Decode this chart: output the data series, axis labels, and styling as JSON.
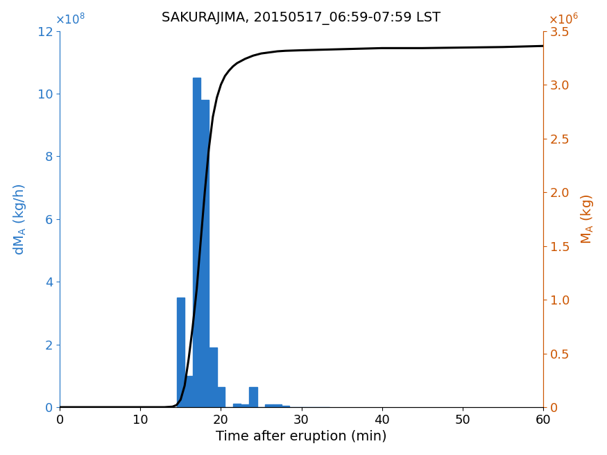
{
  "title": "SAKURAJIMA, 20150517_06:59-07:59 LST",
  "xlabel": "Time after eruption (min)",
  "bar_color": "#2878c8",
  "line_color": "#000000",
  "left_axis_color": "#2878c8",
  "right_axis_color": "#cc5500",
  "xlim": [
    0,
    60
  ],
  "ylim_left": [
    0,
    1200000000.0
  ],
  "ylim_right": [
    0,
    3500000.0
  ],
  "bar_centers": [
    15,
    16,
    17,
    18,
    19,
    20,
    21,
    22,
    23,
    24,
    25,
    26,
    27,
    28,
    29,
    30,
    31,
    32,
    33
  ],
  "bar_heights": [
    350000000.0,
    100000000.0,
    1050000000.0,
    980000000.0,
    190000000.0,
    65000000.0,
    0.0,
    12000000.0,
    10000000.0,
    65000000.0,
    0.0,
    10000000.0,
    10000000.0,
    5000000.0,
    0.0,
    0.0,
    0.0,
    0.0,
    0.0
  ],
  "cum_x": [
    0,
    1,
    2,
    3,
    4,
    5,
    6,
    7,
    8,
    9,
    10,
    11,
    12,
    13,
    14,
    14.5,
    15,
    15.5,
    16,
    16.5,
    17,
    17.5,
    18,
    18.5,
    19,
    19.5,
    20,
    20.5,
    21,
    21.5,
    22,
    22.5,
    23,
    24,
    25,
    26,
    27,
    28,
    30,
    35,
    40,
    45,
    50,
    55,
    60
  ],
  "cum_y": [
    0,
    0,
    0,
    0,
    0,
    0,
    0,
    0,
    0,
    0,
    0,
    0,
    0,
    0,
    5000.0,
    20000.0,
    70000.0,
    200000.0,
    450000.0,
    750000.0,
    1100000.0,
    1550000.0,
    2000000.0,
    2400000.0,
    2700000.0,
    2880000.0,
    3000000.0,
    3080000.0,
    3130000.0,
    3170000.0,
    3200000.0,
    3220000.0,
    3240000.0,
    3270000.0,
    3290000.0,
    3300000.0,
    3310000.0,
    3315000.0,
    3320000.0,
    3330000.0,
    3340000.0,
    3340000.0,
    3345000.0,
    3350000.0,
    3360000.0
  ]
}
